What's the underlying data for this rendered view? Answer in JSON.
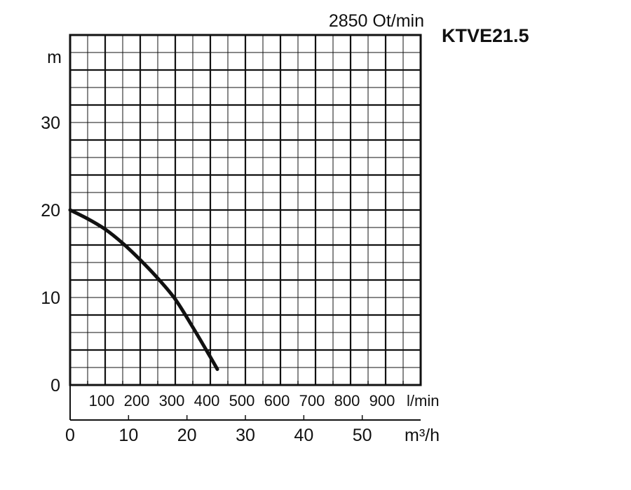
{
  "chart_data": {
    "type": "line",
    "model": "KTVE21.5",
    "speed_label": "2850 Ot/min",
    "y_unit": "m",
    "y_ticks": [
      "0",
      "10",
      "20",
      "30"
    ],
    "ylim": [
      0,
      40
    ],
    "x_unit_lmin": "l/min",
    "x_ticks_lmin": [
      "100",
      "200",
      "300",
      "400",
      "500",
      "600",
      "700",
      "800",
      "900"
    ],
    "x_unit_m3h": "m³/h",
    "x_ticks_m3h": [
      "0",
      "10",
      "20",
      "30",
      "40",
      "50"
    ],
    "xlim_lmin": [
      0,
      1000
    ],
    "grid": true,
    "series": [
      {
        "x_lmin": [
          0,
          50,
          100,
          150,
          200,
          250,
          300,
          350,
          400,
          420
        ],
        "y": [
          20,
          19,
          17.8,
          16.2,
          14.3,
          12.2,
          9.8,
          6.6,
          3.2,
          1.8
        ]
      }
    ],
    "colors": {
      "curve": "#111111",
      "grid": "#111111",
      "background": "#ffffff"
    }
  }
}
